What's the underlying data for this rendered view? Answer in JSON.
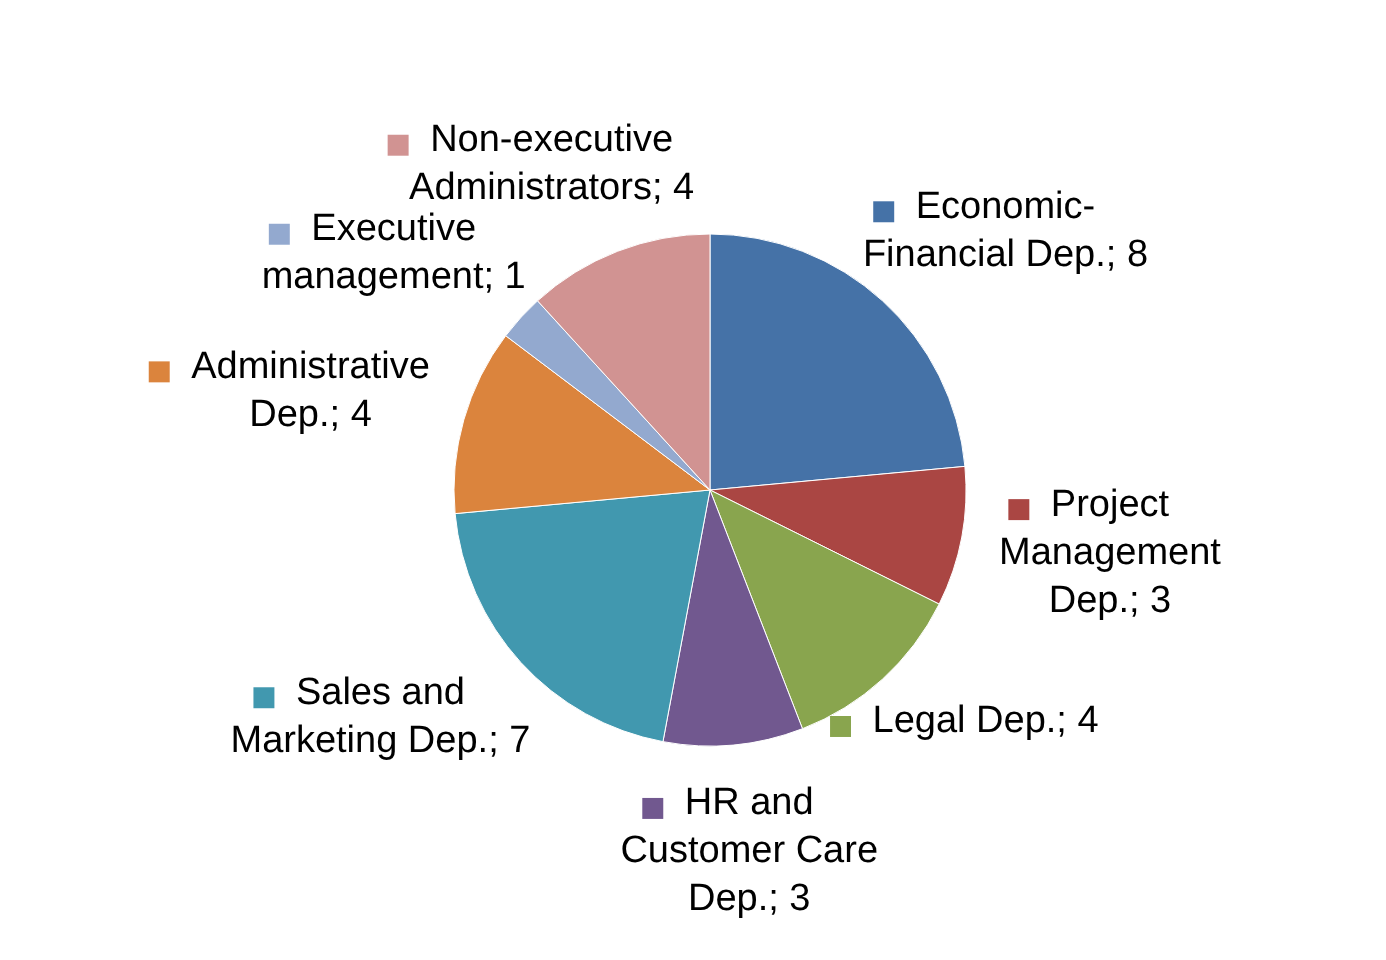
{
  "chart_data": {
    "type": "pie",
    "categories": [
      "Economic-Financial Dep.",
      "Project Management Dep.",
      "Legal Dep.",
      "HR and Customer Care Dep.",
      "Sales and Marketing Dep.",
      "Administrative Dep.",
      "Executive management",
      "Non-executive Administrators"
    ],
    "values": [
      8,
      3,
      4,
      3,
      7,
      4,
      1,
      4
    ],
    "colors": [
      "#4572a7",
      "#aa4643",
      "#89a54e",
      "#71588f",
      "#4198af",
      "#db843d",
      "#93a9cf",
      "#d19392"
    ],
    "value_labels": [
      "; 8",
      "; 3",
      "; 4",
      "; 3",
      "; 7",
      "; 4",
      "; 1",
      "; 4"
    ],
    "legend": true
  }
}
